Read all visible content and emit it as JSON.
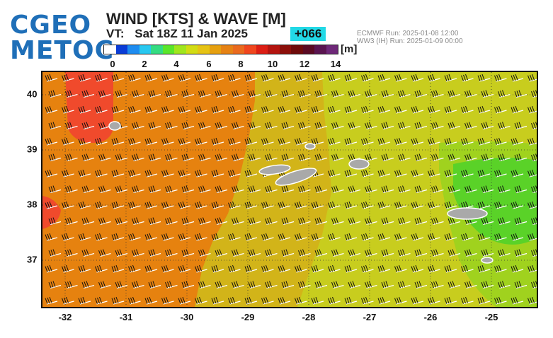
{
  "logo": {
    "line1": "CGEO",
    "line2": "METOC"
  },
  "header": {
    "title": "WIND [KTS] & WAVE [M]",
    "vt_label": "VT:",
    "vt_value": "Sat 18Z 11 Jan 2025",
    "forecast_hour": "+066",
    "run_ecmwf": "ECMWF    Run: 2025-01-08 12:00",
    "run_ww3": "WW3 (IH) Run: 2025-01-09 00:00"
  },
  "legend": {
    "unit": "[m]",
    "ticks": [
      "0",
      "2",
      "4",
      "6",
      "8",
      "10",
      "12",
      "14"
    ],
    "colors": [
      "#ffffff",
      "#0a3cd6",
      "#1e8cf0",
      "#28c8f0",
      "#34dc82",
      "#5ae62a",
      "#a0e61e",
      "#d2dc14",
      "#e6c314",
      "#e6a00f",
      "#e68214",
      "#ea6a1e",
      "#f0461e",
      "#dc1e14",
      "#b4140f",
      "#8c0f0a",
      "#6e0a0a",
      "#5a0a23",
      "#5a1450",
      "#6e2878"
    ]
  },
  "map": {
    "lat_labels": [
      "40",
      "39",
      "38",
      "37"
    ],
    "lon_labels": [
      "-32",
      "-31",
      "-30",
      "-29",
      "-28",
      "-27",
      "-26",
      "-25"
    ],
    "wave_colors": {
      "orange": "#e6820f",
      "red": "#f04a2c",
      "olive": "#d2b419",
      "yellow": "#c8cd1e",
      "lime": "#a0d21e",
      "green": "#5ad228",
      "land": "#a9a9a9"
    }
  }
}
